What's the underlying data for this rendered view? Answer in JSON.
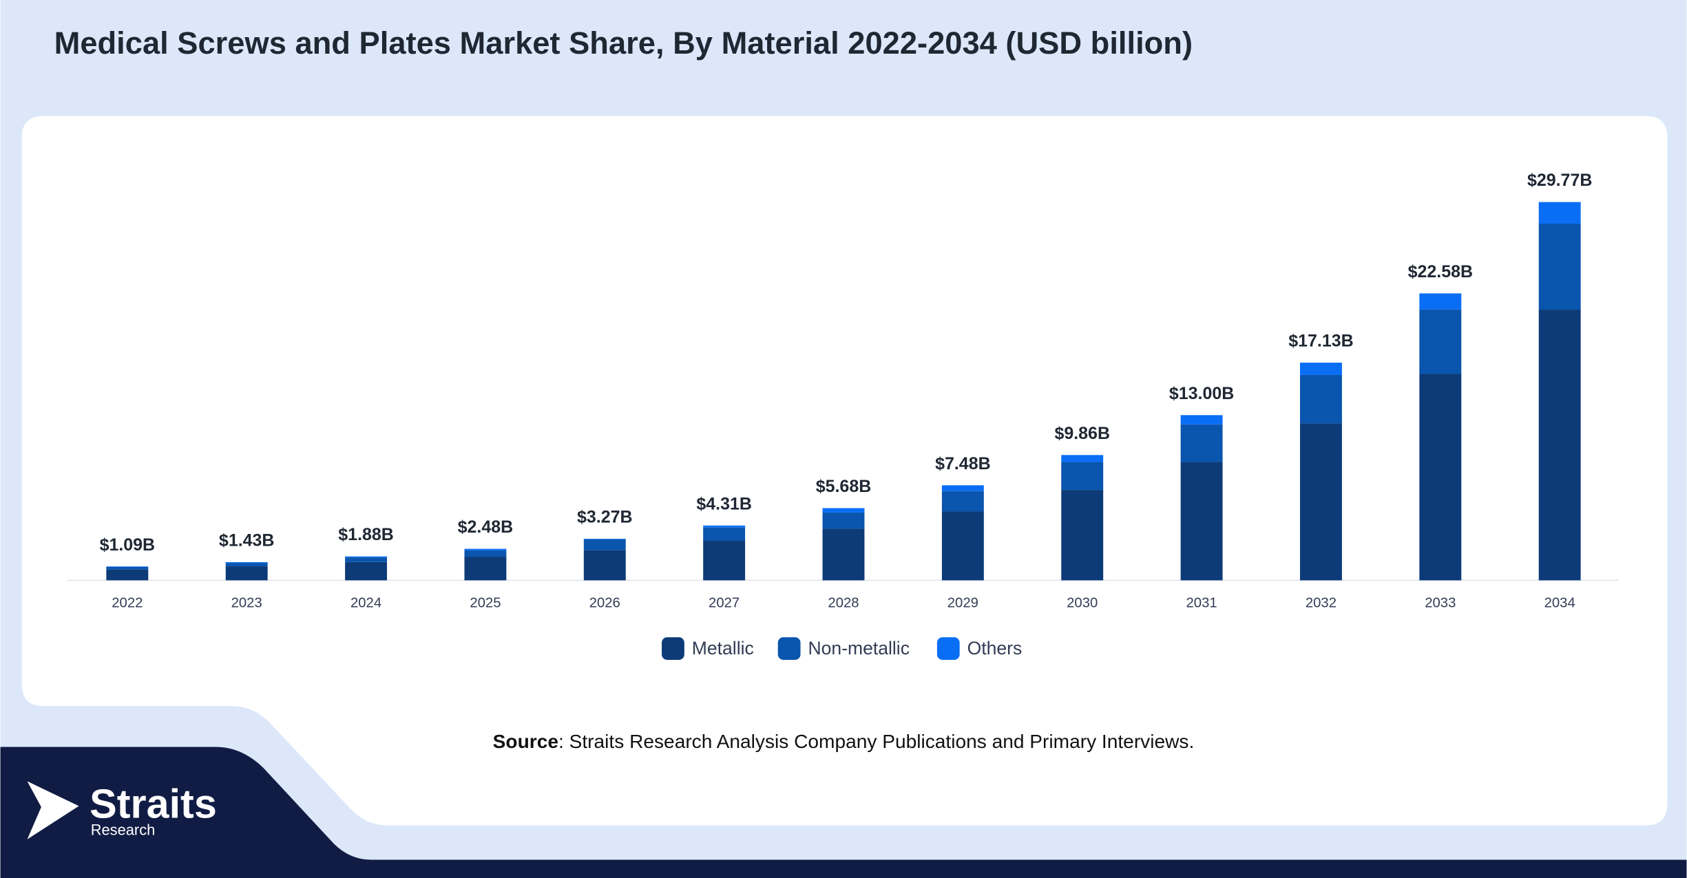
{
  "chart_data": {
    "type": "stacked_bar",
    "title": "Medical Screws and Plates Market Share, By Material 2022-2034 (USD billion)",
    "categories": [
      "2022",
      "2023",
      "2024",
      "2025",
      "2026",
      "2027",
      "2028",
      "2029",
      "2030",
      "2031",
      "2032",
      "2033",
      "2034"
    ],
    "series": [
      {
        "name": "Metallic",
        "color": "#0d3b78",
        "values": [
          0.85,
          1.1,
          1.44,
          1.86,
          2.37,
          3.13,
          4.06,
          5.41,
          7.11,
          9.31,
          12.35,
          16.24,
          21.3
        ]
      },
      {
        "name": "Non-metallic",
        "color": "#0a55ad",
        "values": [
          0.2,
          0.27,
          0.36,
          0.5,
          0.85,
          1.02,
          1.27,
          1.61,
          2.2,
          2.96,
          3.81,
          5.08,
          6.77
        ]
      },
      {
        "name": "Others",
        "color": "#0a6ef5",
        "values": [
          0.04,
          0.06,
          0.08,
          0.12,
          0.05,
          0.16,
          0.35,
          0.46,
          0.55,
          0.73,
          0.97,
          1.26,
          1.7
        ]
      }
    ],
    "totals": {
      "values": [
        1.09,
        1.43,
        1.88,
        2.48,
        3.27,
        4.31,
        5.68,
        7.48,
        9.86,
        13.0,
        17.13,
        22.58,
        29.77
      ],
      "value_labels": [
        "$1.09B",
        "$1.43B",
        "$1.88B",
        "$2.48B",
        "$3.27B",
        "$4.31B",
        "$5.68B",
        "$7.48B",
        "$9.86B",
        "$13.00B",
        "$17.13B",
        "$22.58B",
        "$29.77B"
      ]
    },
    "legend": "bottom"
  },
  "source": {
    "label": "Source",
    "text": ": Straits Research Analysis Company Publications and Primary Interviews."
  },
  "logo": {
    "name": "Straits",
    "sub": "Research"
  }
}
